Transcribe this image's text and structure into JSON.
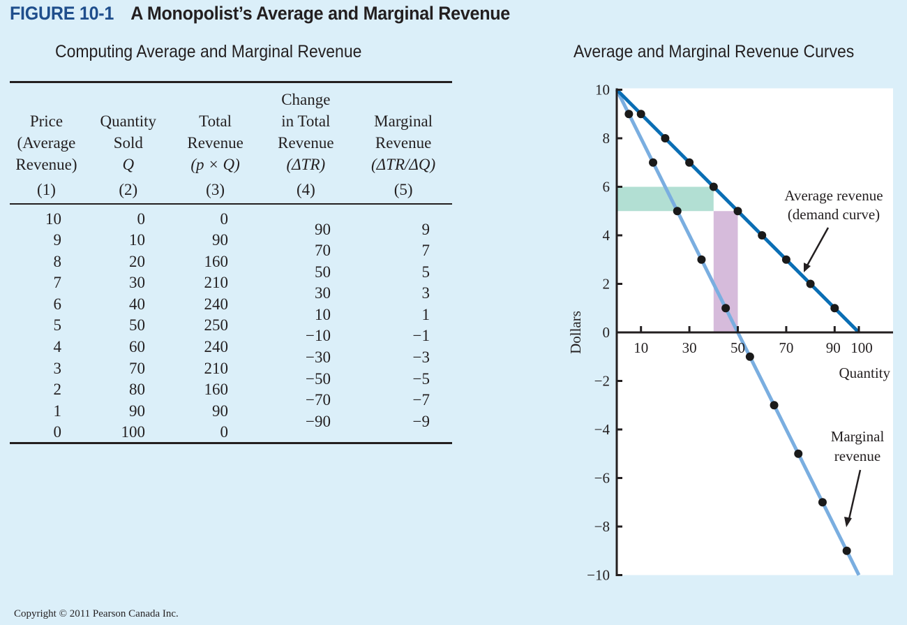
{
  "figure": {
    "number": "FIGURE 10-1",
    "title": "A Monopolist’s Average and Marginal Revenue"
  },
  "table": {
    "title": "Computing Average and Marginal Revenue",
    "headers": [
      {
        "lines": [
          "Price",
          "(Average",
          "Revenue)"
        ],
        "num": "(1)"
      },
      {
        "lines": [
          "Quantity",
          "Sold",
          "Q"
        ],
        "num": "(2)"
      },
      {
        "lines": [
          "Total",
          "Revenue",
          "(p × Q)"
        ],
        "num": "(3)"
      },
      {
        "lines": [
          "Change",
          "in Total",
          "Revenue",
          "(ΔTR)"
        ],
        "num": "(4)"
      },
      {
        "lines": [
          "Marginal",
          "Revenue",
          "(ΔTR/ΔQ)"
        ],
        "num": "(5)"
      }
    ],
    "price": [
      "10",
      "9",
      "8",
      "7",
      "6",
      "5",
      "4",
      "3",
      "2",
      "1",
      "0"
    ],
    "quantity": [
      "0",
      "10",
      "20",
      "30",
      "40",
      "50",
      "60",
      "70",
      "80",
      "90",
      "100"
    ],
    "total_revenue": [
      "0",
      "90",
      "160",
      "210",
      "240",
      "250",
      "240",
      "210",
      "160",
      "90",
      "0"
    ],
    "change_total_revenue": [
      "90",
      "70",
      "50",
      "30",
      "10",
      "−10",
      "−30",
      "−50",
      "−70",
      "−90"
    ],
    "marginal_revenue": [
      "9",
      "7",
      "5",
      "3",
      "1",
      "−1",
      "−3",
      "−5",
      "−7",
      "−9"
    ]
  },
  "chart_data": {
    "type": "line",
    "title": "Average and Marginal Revenue Curves",
    "xlabel": "Quantity",
    "ylabel": "Dollars",
    "xlim": [
      0,
      112
    ],
    "ylim": [
      -10,
      10
    ],
    "x_ticks": [
      10,
      30,
      50,
      70,
      90,
      100
    ],
    "x_tick_labels": [
      "10",
      "30",
      "50",
      "70",
      "90",
      "100"
    ],
    "y_ticks": [
      10,
      8,
      6,
      4,
      2,
      0,
      -2,
      -4,
      -6,
      -8,
      -10
    ],
    "y_tick_labels": [
      "10",
      "8",
      "6",
      "4",
      "2",
      "0",
      "−2",
      "−4",
      "−6",
      "−8",
      "−10"
    ],
    "grid": false,
    "series": [
      {
        "name": "Average revenue (demand curve)",
        "color": "#0a6eb4",
        "line": [
          [
            0,
            10
          ],
          [
            100,
            0
          ]
        ],
        "x": [
          10,
          20,
          30,
          40,
          50,
          60,
          70,
          80,
          90
        ],
        "y": [
          9,
          8,
          7,
          6,
          5,
          4,
          3,
          2,
          1
        ]
      },
      {
        "name": "Marginal revenue",
        "color": "#7aaee0",
        "line": [
          [
            0,
            10
          ],
          [
            100,
            -10
          ]
        ],
        "x": [
          5,
          15,
          25,
          35,
          45,
          55,
          65,
          75,
          85,
          95
        ],
        "y": [
          9,
          7,
          5,
          3,
          1,
          -1,
          -3,
          -5,
          -7,
          -9
        ]
      }
    ],
    "shaded_regions": [
      {
        "name": "price-reduction-loss",
        "x": [
          0,
          40
        ],
        "y": [
          5,
          6
        ],
        "color": "#b2dfd3"
      },
      {
        "name": "extra-unit-gain",
        "x": [
          40,
          50
        ],
        "y": [
          0,
          5
        ],
        "color": "#d6bbdb"
      }
    ],
    "annotations": [
      {
        "lines": [
          "Average revenue",
          "(demand curve)"
        ],
        "target": "Average revenue (demand curve)"
      },
      {
        "lines": [
          "Marginal",
          "revenue"
        ],
        "target": "Marginal revenue"
      }
    ]
  },
  "footer": {
    "copyright": "Copyright © 2011 Pearson Canada Inc."
  }
}
